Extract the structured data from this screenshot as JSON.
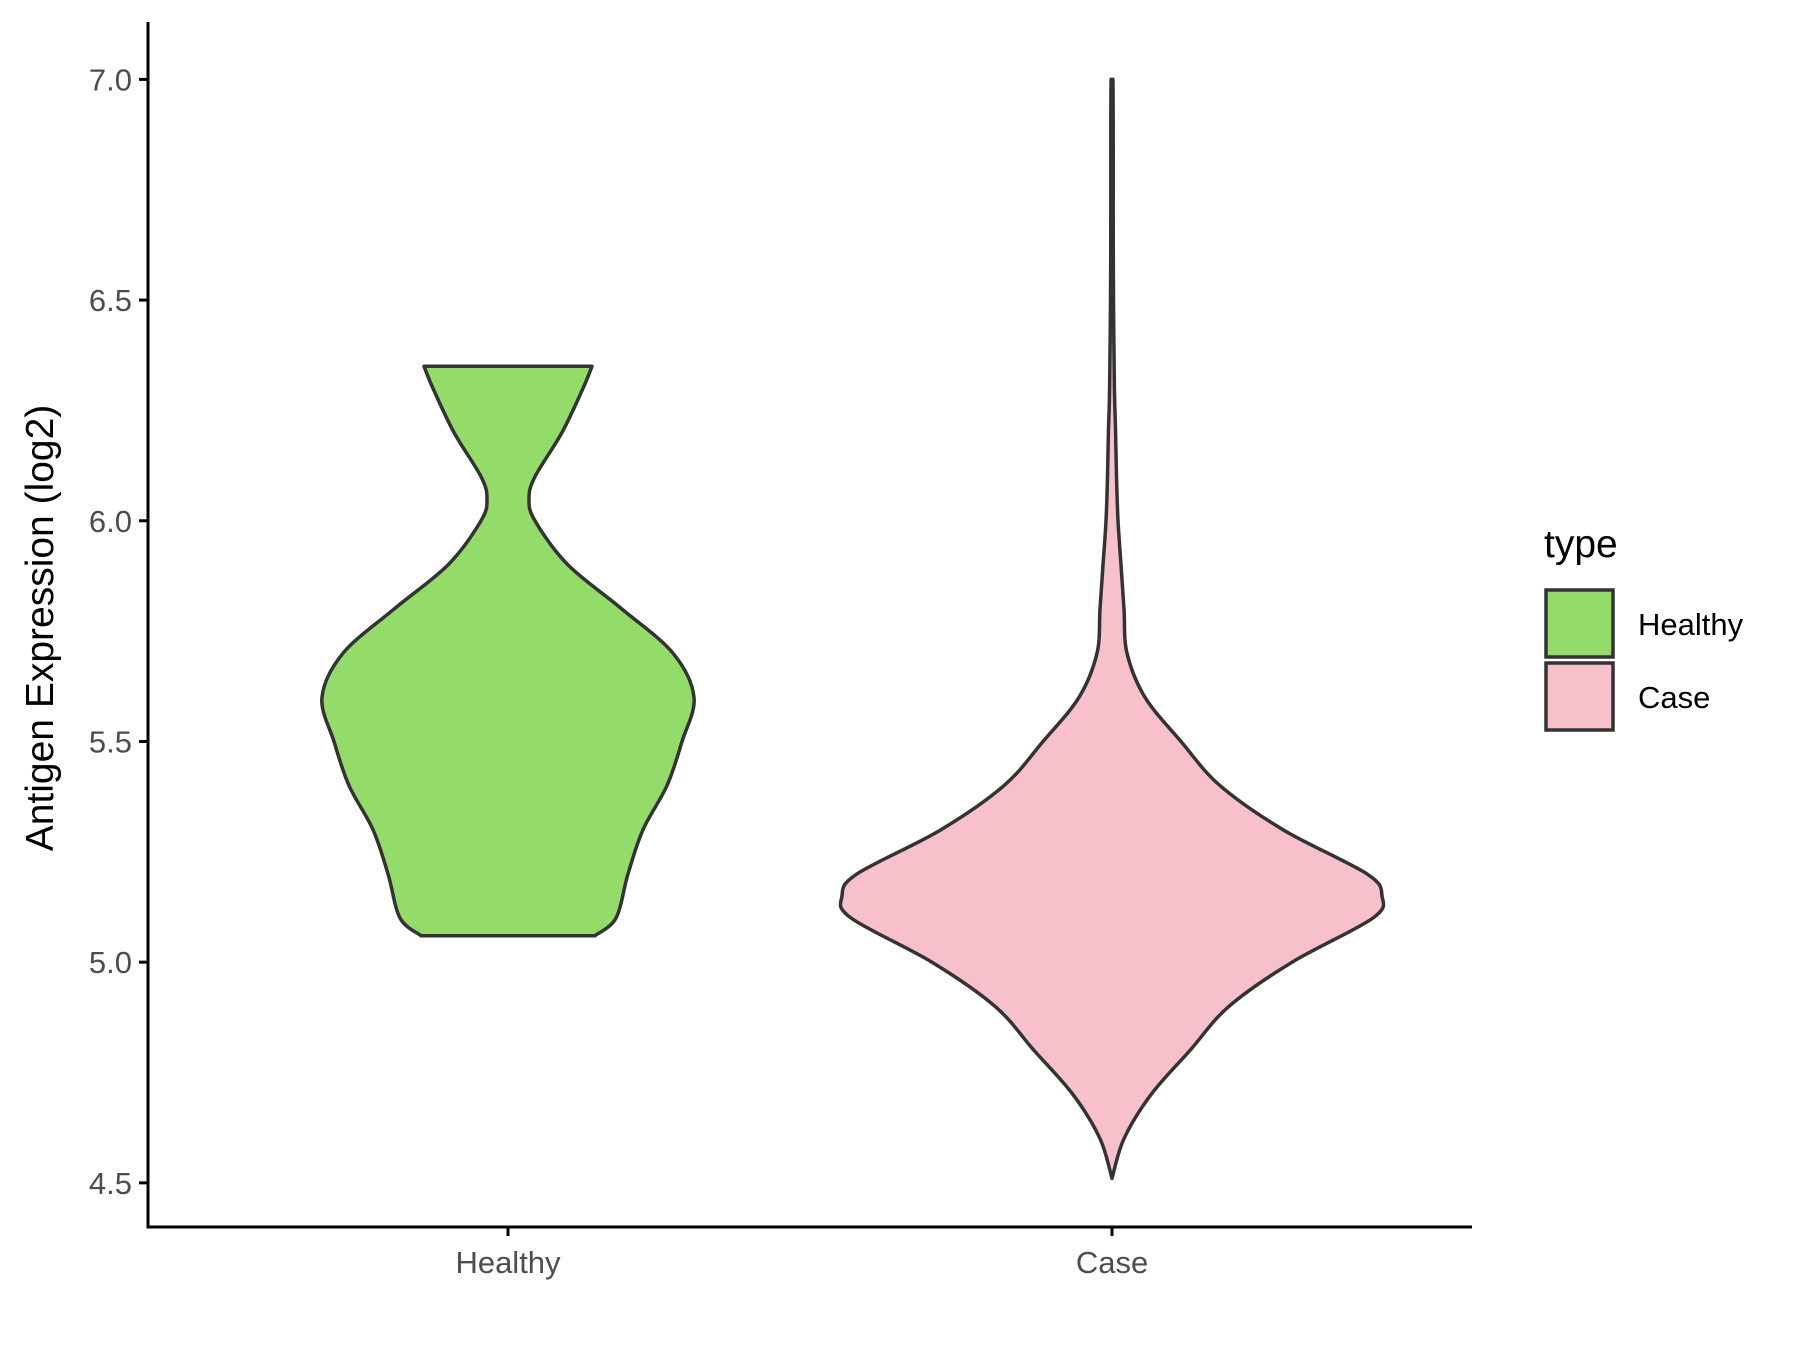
{
  "chart_data": {
    "type": "violin",
    "title": "",
    "xlabel": "",
    "ylabel": "Antigen Expression (log2)",
    "categories": [
      "Healthy",
      "Case"
    ],
    "ylim": [
      4.4,
      7.13
    ],
    "yticks": [
      4.5,
      5.0,
      5.5,
      6.0,
      6.5,
      7.0
    ],
    "ytick_labels": [
      "4.5",
      "5.0",
      "5.5",
      "6.0",
      "6.5",
      "7.0"
    ],
    "legend": {
      "title": "type",
      "placement": "right",
      "items": [
        {
          "label": "Healthy",
          "color": "#93dc69"
        },
        {
          "label": "Case",
          "color": "#f7c0cb"
        }
      ]
    },
    "series": [
      {
        "name": "Healthy",
        "color": "#93dc69",
        "min": 5.06,
        "max": 6.35,
        "density_profile": [
          [
            5.06,
            0.29
          ],
          [
            5.1,
            0.36
          ],
          [
            5.2,
            0.4
          ],
          [
            5.3,
            0.45
          ],
          [
            5.4,
            0.53
          ],
          [
            5.5,
            0.58
          ],
          [
            5.6,
            0.62
          ],
          [
            5.7,
            0.55
          ],
          [
            5.8,
            0.38
          ],
          [
            5.9,
            0.2
          ],
          [
            6.0,
            0.09
          ],
          [
            6.05,
            0.07
          ],
          [
            6.1,
            0.09
          ],
          [
            6.2,
            0.18
          ],
          [
            6.3,
            0.25
          ],
          [
            6.35,
            0.28
          ]
        ]
      },
      {
        "name": "Case",
        "color": "#f7c0cb",
        "min": 4.51,
        "max": 7.0,
        "density_profile": [
          [
            4.51,
            0.0
          ],
          [
            4.6,
            0.04
          ],
          [
            4.7,
            0.13
          ],
          [
            4.8,
            0.26
          ],
          [
            4.9,
            0.39
          ],
          [
            5.0,
            0.6
          ],
          [
            5.1,
            0.87
          ],
          [
            5.15,
            0.9
          ],
          [
            5.2,
            0.85
          ],
          [
            5.3,
            0.57
          ],
          [
            5.4,
            0.36
          ],
          [
            5.5,
            0.23
          ],
          [
            5.6,
            0.11
          ],
          [
            5.7,
            0.05
          ],
          [
            5.8,
            0.04
          ],
          [
            5.9,
            0.03
          ],
          [
            6.0,
            0.02
          ],
          [
            6.1,
            0.015
          ],
          [
            6.2,
            0.012
          ],
          [
            6.3,
            0.008
          ],
          [
            6.5,
            0.005
          ],
          [
            6.7,
            0.004
          ],
          [
            6.9,
            0.004
          ],
          [
            7.0,
            0.003
          ]
        ]
      }
    ]
  }
}
